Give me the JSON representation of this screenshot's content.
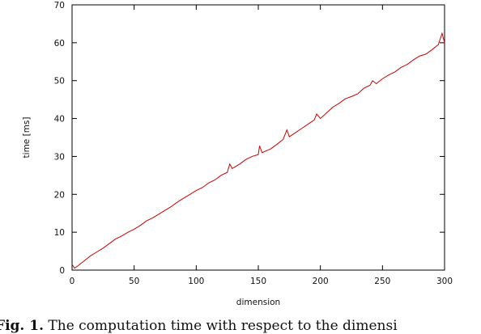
{
  "chart_data": {
    "type": "line",
    "title": "",
    "xlabel": "dimension",
    "ylabel": "time [ms]",
    "xlim": [
      0,
      300
    ],
    "ylim": [
      0,
      70
    ],
    "xticks": [
      0,
      50,
      100,
      150,
      200,
      250,
      300
    ],
    "yticks": [
      0,
      10,
      20,
      30,
      40,
      50,
      60,
      70
    ],
    "grid": false,
    "legend": "none",
    "series": [
      {
        "color": "#cc0000",
        "x": [
          0,
          2,
          5,
          10,
          15,
          20,
          25,
          30,
          35,
          40,
          45,
          50,
          55,
          60,
          65,
          70,
          75,
          80,
          85,
          90,
          95,
          100,
          105,
          110,
          115,
          120,
          125,
          127,
          129,
          135,
          140,
          145,
          150,
          151,
          153,
          160,
          165,
          170,
          173,
          175,
          180,
          185,
          190,
          195,
          197,
          200,
          205,
          210,
          215,
          220,
          225,
          230,
          235,
          240,
          242,
          245,
          250,
          255,
          260,
          265,
          270,
          275,
          280,
          285,
          290,
          295,
          298,
          300
        ],
        "y": [
          1.5,
          0.5,
          1.2,
          2.5,
          3.8,
          4.8,
          5.8,
          7.0,
          8.2,
          9.0,
          10.0,
          10.8,
          11.8,
          13.0,
          13.8,
          14.8,
          15.8,
          16.8,
          18.0,
          19.0,
          20.0,
          21.0,
          21.8,
          23.0,
          23.8,
          25.0,
          25.8,
          28.0,
          26.8,
          28.0,
          29.2,
          30.0,
          30.5,
          32.8,
          31.0,
          32.0,
          33.2,
          34.5,
          37.0,
          35.2,
          36.3,
          37.4,
          38.5,
          39.6,
          41.2,
          40.0,
          41.5,
          43.0,
          44.0,
          45.2,
          45.8,
          46.5,
          48.0,
          48.8,
          50.0,
          49.2,
          50.5,
          51.5,
          52.3,
          53.5,
          54.3,
          55.5,
          56.5,
          57.0,
          58.2,
          59.5,
          62.5,
          60.0
        ]
      }
    ]
  },
  "caption": {
    "label": "Fig. 1.",
    "text": "The computation time with respect to the dimensi"
  }
}
